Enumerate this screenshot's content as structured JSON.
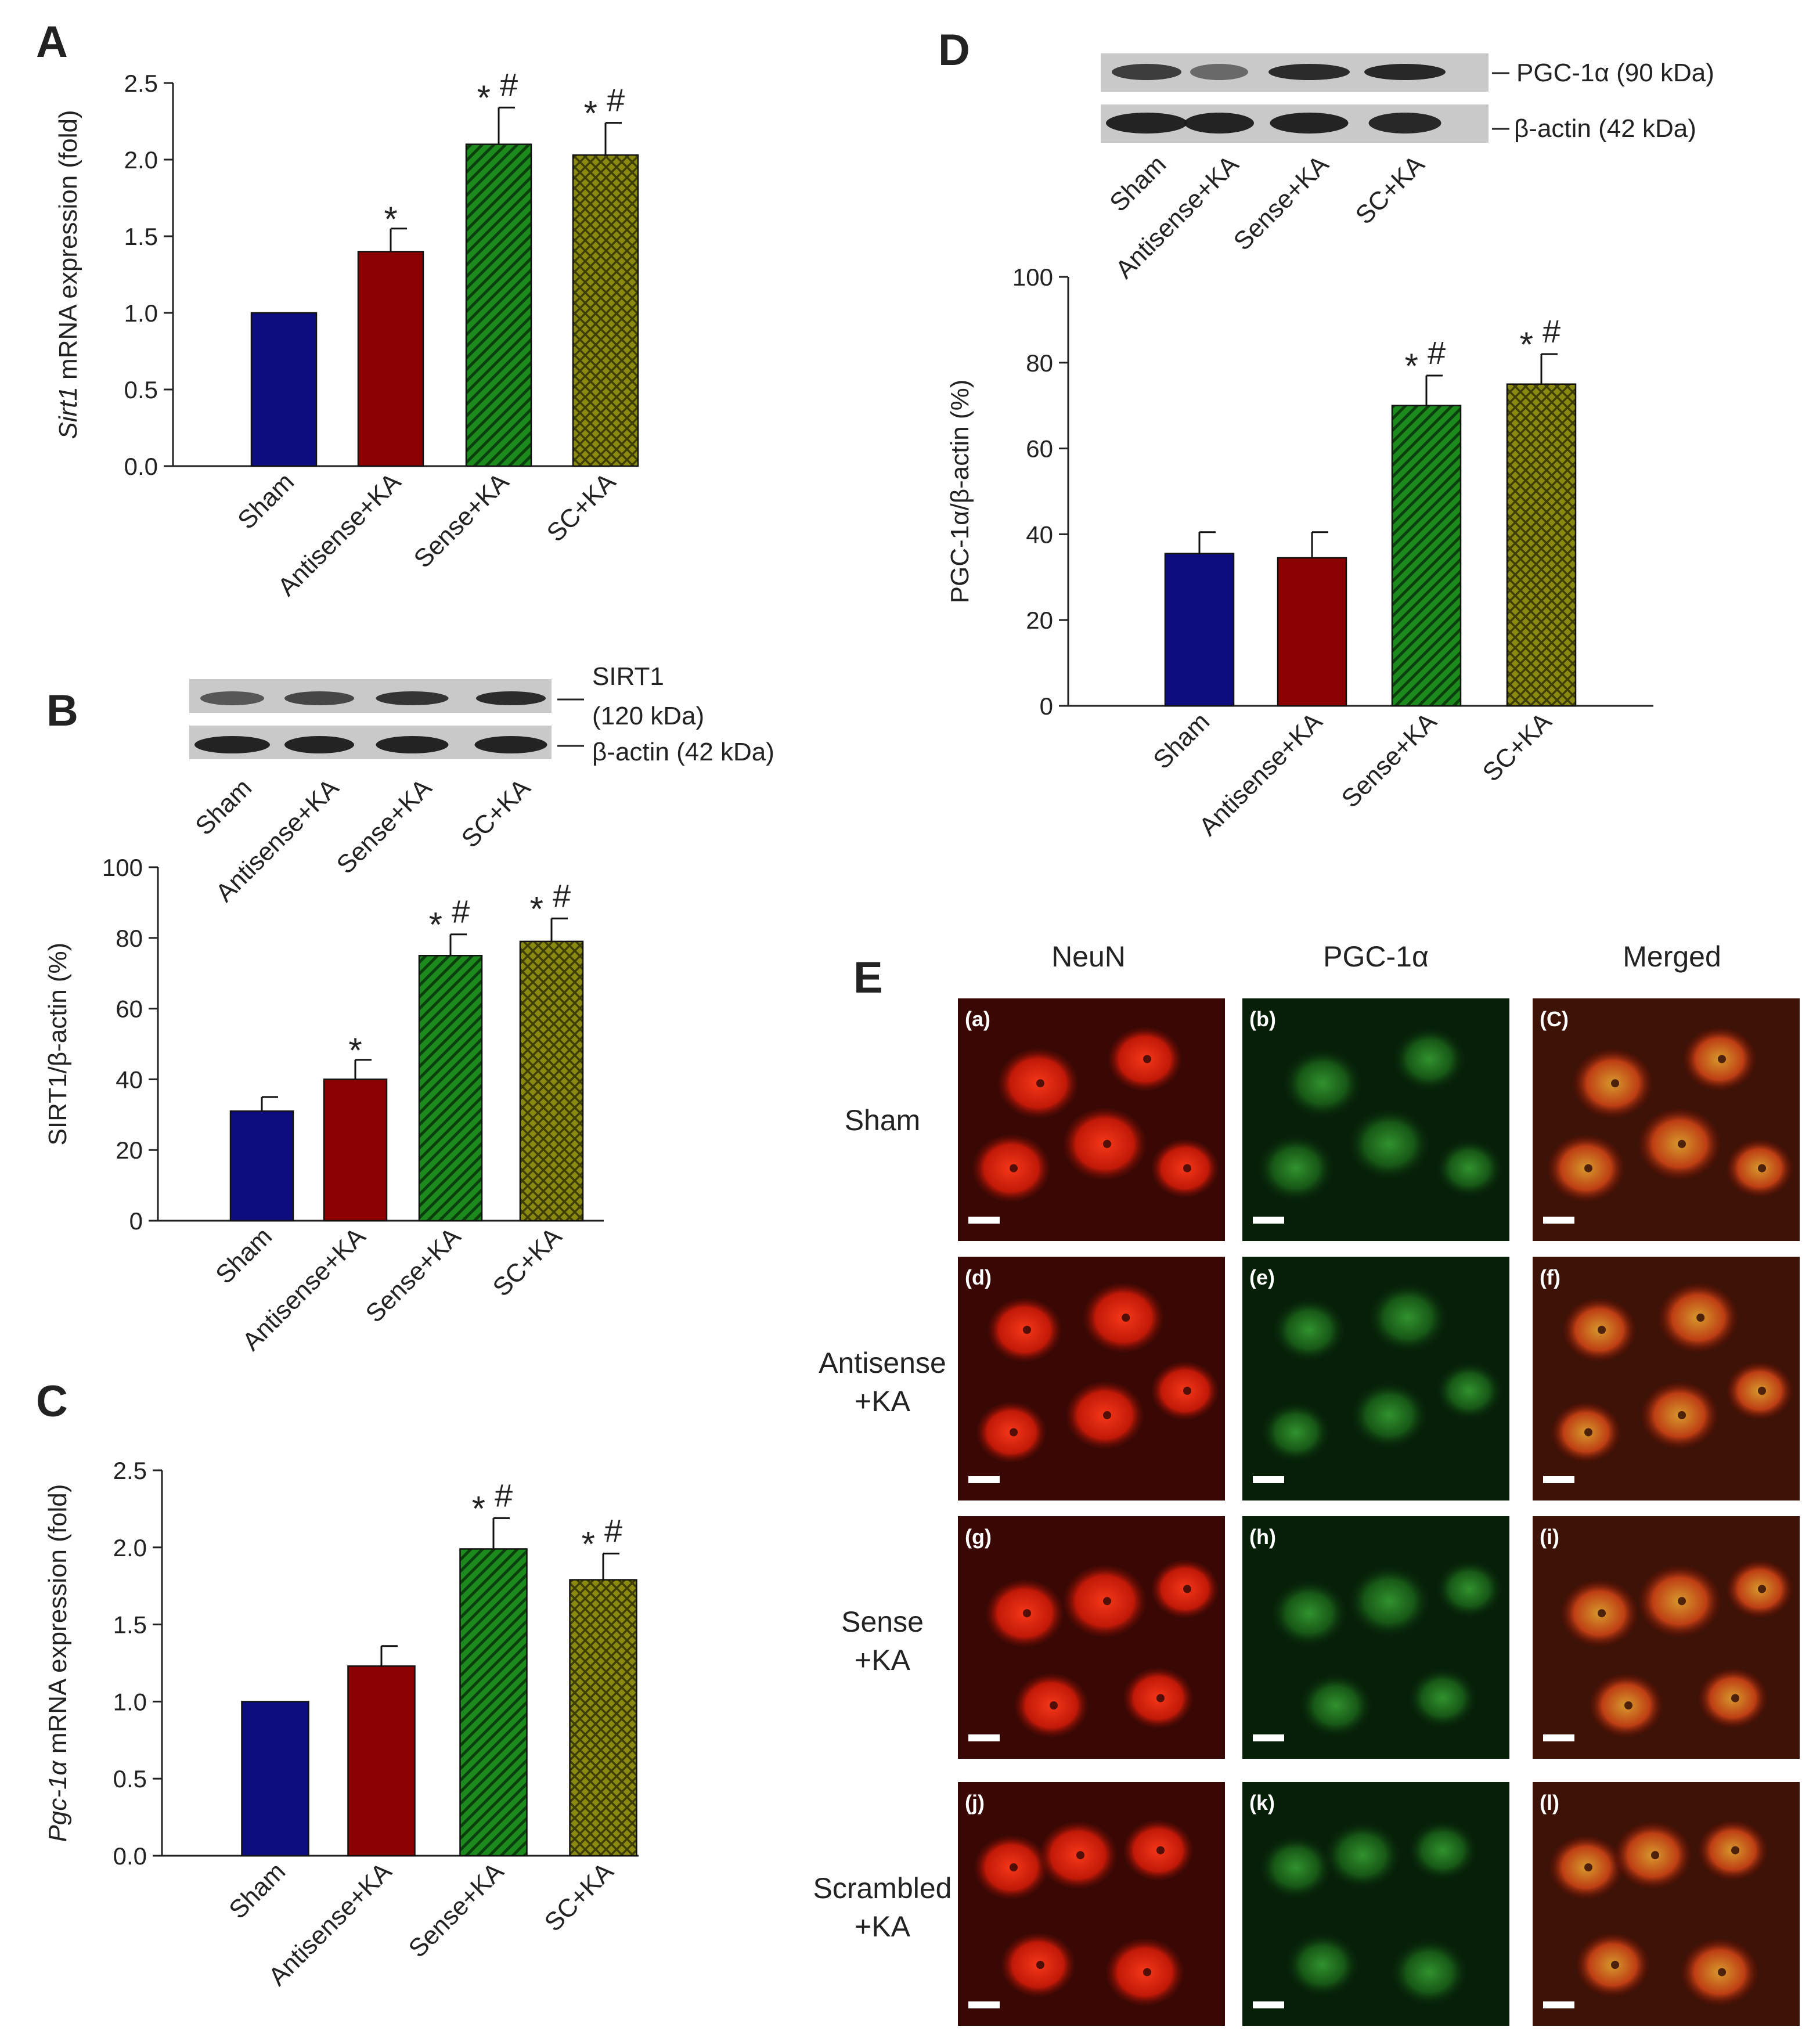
{
  "colors": {
    "sham": "#0d0d80",
    "antisense": "#8b0000",
    "sense": "#1d8a1d",
    "sc": "#8a8a12",
    "sense_hatch": "#0b3f0b",
    "sc_hatch": "#3e3e06"
  },
  "chart_data": [
    {
      "panel": "A",
      "type": "bar",
      "categories": [
        "Sham",
        "Antisense+KA",
        "Sense+KA",
        "SC+KA"
      ],
      "values": [
        1.0,
        1.4,
        2.1,
        2.03
      ],
      "errors": [
        0,
        0.15,
        0.24,
        0.21
      ],
      "ylabel_italic": "Sirt1",
      "ylabel_rest": " mRNA expression (fold)",
      "ylim": [
        0,
        2.5
      ],
      "yticks": [
        "0.0",
        "0.5",
        "1.0",
        "1.5",
        "2.0",
        "2.5"
      ],
      "annotations": [
        {
          "category": "Antisense+KA",
          "star": "*",
          "hash": ""
        },
        {
          "category": "Sense+KA",
          "star": "*",
          "hash": "#"
        },
        {
          "category": "SC+KA",
          "star": "*",
          "hash": "#"
        }
      ]
    },
    {
      "panel": "B",
      "type": "bar",
      "categories": [
        "Sham",
        "Antisense+KA",
        "Sense+KA",
        "SC+KA"
      ],
      "values": [
        31,
        40,
        75,
        79
      ],
      "errors": [
        4,
        5.5,
        6,
        6.5
      ],
      "ylabel_italic": "",
      "ylabel_rest": "SIRT1/β-actin (%)",
      "ylim": [
        0,
        100
      ],
      "yticks": [
        "0",
        "20",
        "40",
        "60",
        "80",
        "100"
      ],
      "annotations": [
        {
          "category": "Antisense+KA",
          "star": "*",
          "hash": ""
        },
        {
          "category": "Sense+KA",
          "star": "*",
          "hash": "#"
        },
        {
          "category": "SC+KA",
          "star": "*",
          "hash": "#"
        }
      ],
      "blot": {
        "lane_labels": [
          "Sham",
          "Antisense+KA",
          "Sense+KA",
          "SC+KA"
        ],
        "band1_label": "SIRT1",
        "band1_label_2": "(120 kDa)",
        "band2_label": "β-actin (42 kDa)"
      }
    },
    {
      "panel": "C",
      "type": "bar",
      "categories": [
        "Sham",
        "Antisense+KA",
        "Sense+KA",
        "SC+KA"
      ],
      "values": [
        1.0,
        1.23,
        1.99,
        1.79
      ],
      "errors": [
        0,
        0.13,
        0.2,
        0.17
      ],
      "ylabel_italic": "Pgc-1α",
      "ylabel_rest": " mRNA expression (fold)",
      "ylim": [
        0,
        2.5
      ],
      "yticks": [
        "0.0",
        "0.5",
        "1.0",
        "1.5",
        "2.0",
        "2.5"
      ],
      "annotations": [
        {
          "category": "Sense+KA",
          "star": "*",
          "hash": "#"
        },
        {
          "category": "SC+KA",
          "star": "*",
          "hash": "#"
        }
      ]
    },
    {
      "panel": "D",
      "type": "bar",
      "categories": [
        "Sham",
        "Antisense+KA",
        "Sense+KA",
        "SC+KA"
      ],
      "values": [
        35.5,
        34.5,
        70,
        75
      ],
      "errors": [
        5,
        6,
        7,
        7
      ],
      "ylabel_italic": "",
      "ylabel_rest": "PGC-1α/β-actin (%)",
      "ylim": [
        0,
        100
      ],
      "yticks": [
        "0",
        "20",
        "40",
        "60",
        "80",
        "100"
      ],
      "annotations": [
        {
          "category": "Sense+KA",
          "star": "*",
          "hash": "#"
        },
        {
          "category": "SC+KA",
          "star": "*",
          "hash": "#"
        }
      ],
      "blot": {
        "lane_labels": [
          "Sham",
          "Antisense+KA",
          "Sense+KA",
          "SC+KA"
        ],
        "band1_label": "PGC-1α (90 kDa)",
        "band2_label": "β-actin (42 kDa)"
      }
    }
  ],
  "panel_E": {
    "letter": "E",
    "columns": [
      "NeuN",
      "PGC-1α",
      "Merged"
    ],
    "rows": [
      {
        "line1": "Sham",
        "line2": "",
        "panels": [
          "(a)",
          "(b)",
          "(C)"
        ]
      },
      {
        "line1": "Antisense",
        "line2": "+KA",
        "panels": [
          "(d)",
          "(e)",
          "(f)"
        ]
      },
      {
        "line1": "Sense",
        "line2": "+KA",
        "panels": [
          "(g)",
          "(h)",
          "(i)"
        ]
      },
      {
        "line1": "Scrambled",
        "line2": "+KA",
        "panels": [
          "(j)",
          "(k)",
          "(l)"
        ]
      }
    ]
  }
}
